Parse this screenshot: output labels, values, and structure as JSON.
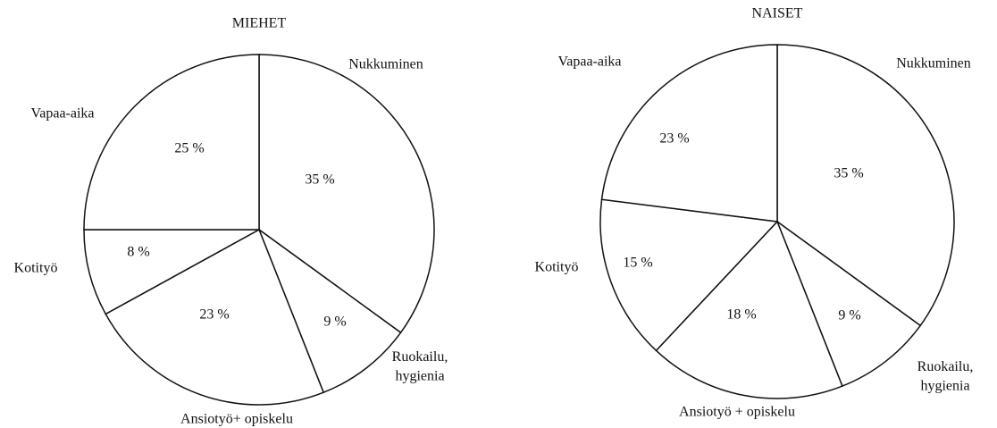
{
  "chart_data": [
    {
      "type": "pie",
      "title": "MIEHET",
      "categories": [
        "Nukkuminen",
        "Ruokailu,\nhygienia",
        "Ansiotyö+ opiskelu",
        "Kotityö",
        "Vapaa-aika"
      ],
      "values": [
        35,
        9,
        23,
        8,
        25
      ],
      "value_labels": [
        "35 %",
        "9 %",
        "23 %",
        "8 %",
        "25 %"
      ],
      "color": "#ffffff"
    },
    {
      "type": "pie",
      "title": "NAISET",
      "categories": [
        "Nukkuminen",
        "Ruokailu,\nhygienia",
        "Ansiotyö + opiskelu",
        "Kotityö",
        "Vapaa-aika"
      ],
      "values": [
        35,
        9,
        18,
        15,
        23
      ],
      "value_labels": [
        "35 %",
        "9 %",
        "18 %",
        "15 %",
        "23 %"
      ],
      "color": "#ffffff"
    }
  ]
}
